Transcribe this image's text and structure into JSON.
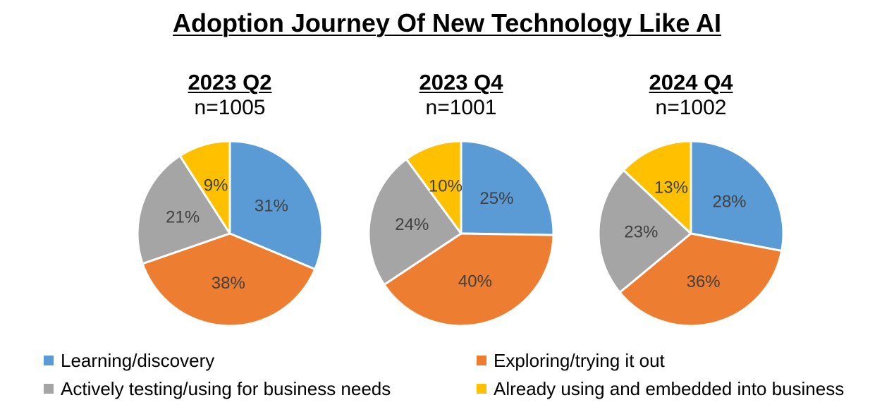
{
  "chart_data": {
    "type": "pie",
    "title": "Adoption Journey Of New Technology Like AI",
    "categories": [
      "Learning/discovery",
      "Exploring/trying it out",
      "Actively testing/using for business needs",
      "Already using and embedded into business"
    ],
    "colors": [
      "#5B9BD5",
      "#ED7D31",
      "#A5A5A5",
      "#FFC000"
    ],
    "legend_position": "bottom",
    "series": [
      {
        "name": "2023 Q2",
        "n_label": "n=1005",
        "values": [
          31,
          38,
          21,
          9
        ],
        "labels": [
          "31%",
          "38%",
          "21%",
          "9%"
        ]
      },
      {
        "name": "2023 Q4",
        "n_label": "n=1001",
        "values": [
          25,
          40,
          24,
          10
        ],
        "labels": [
          "25%",
          "40%",
          "24%",
          "10%"
        ]
      },
      {
        "name": "2024 Q4",
        "n_label": "n=1002",
        "values": [
          28,
          36,
          23,
          13
        ],
        "labels": [
          "28%",
          "36%",
          "23%",
          "13%"
        ]
      }
    ]
  }
}
